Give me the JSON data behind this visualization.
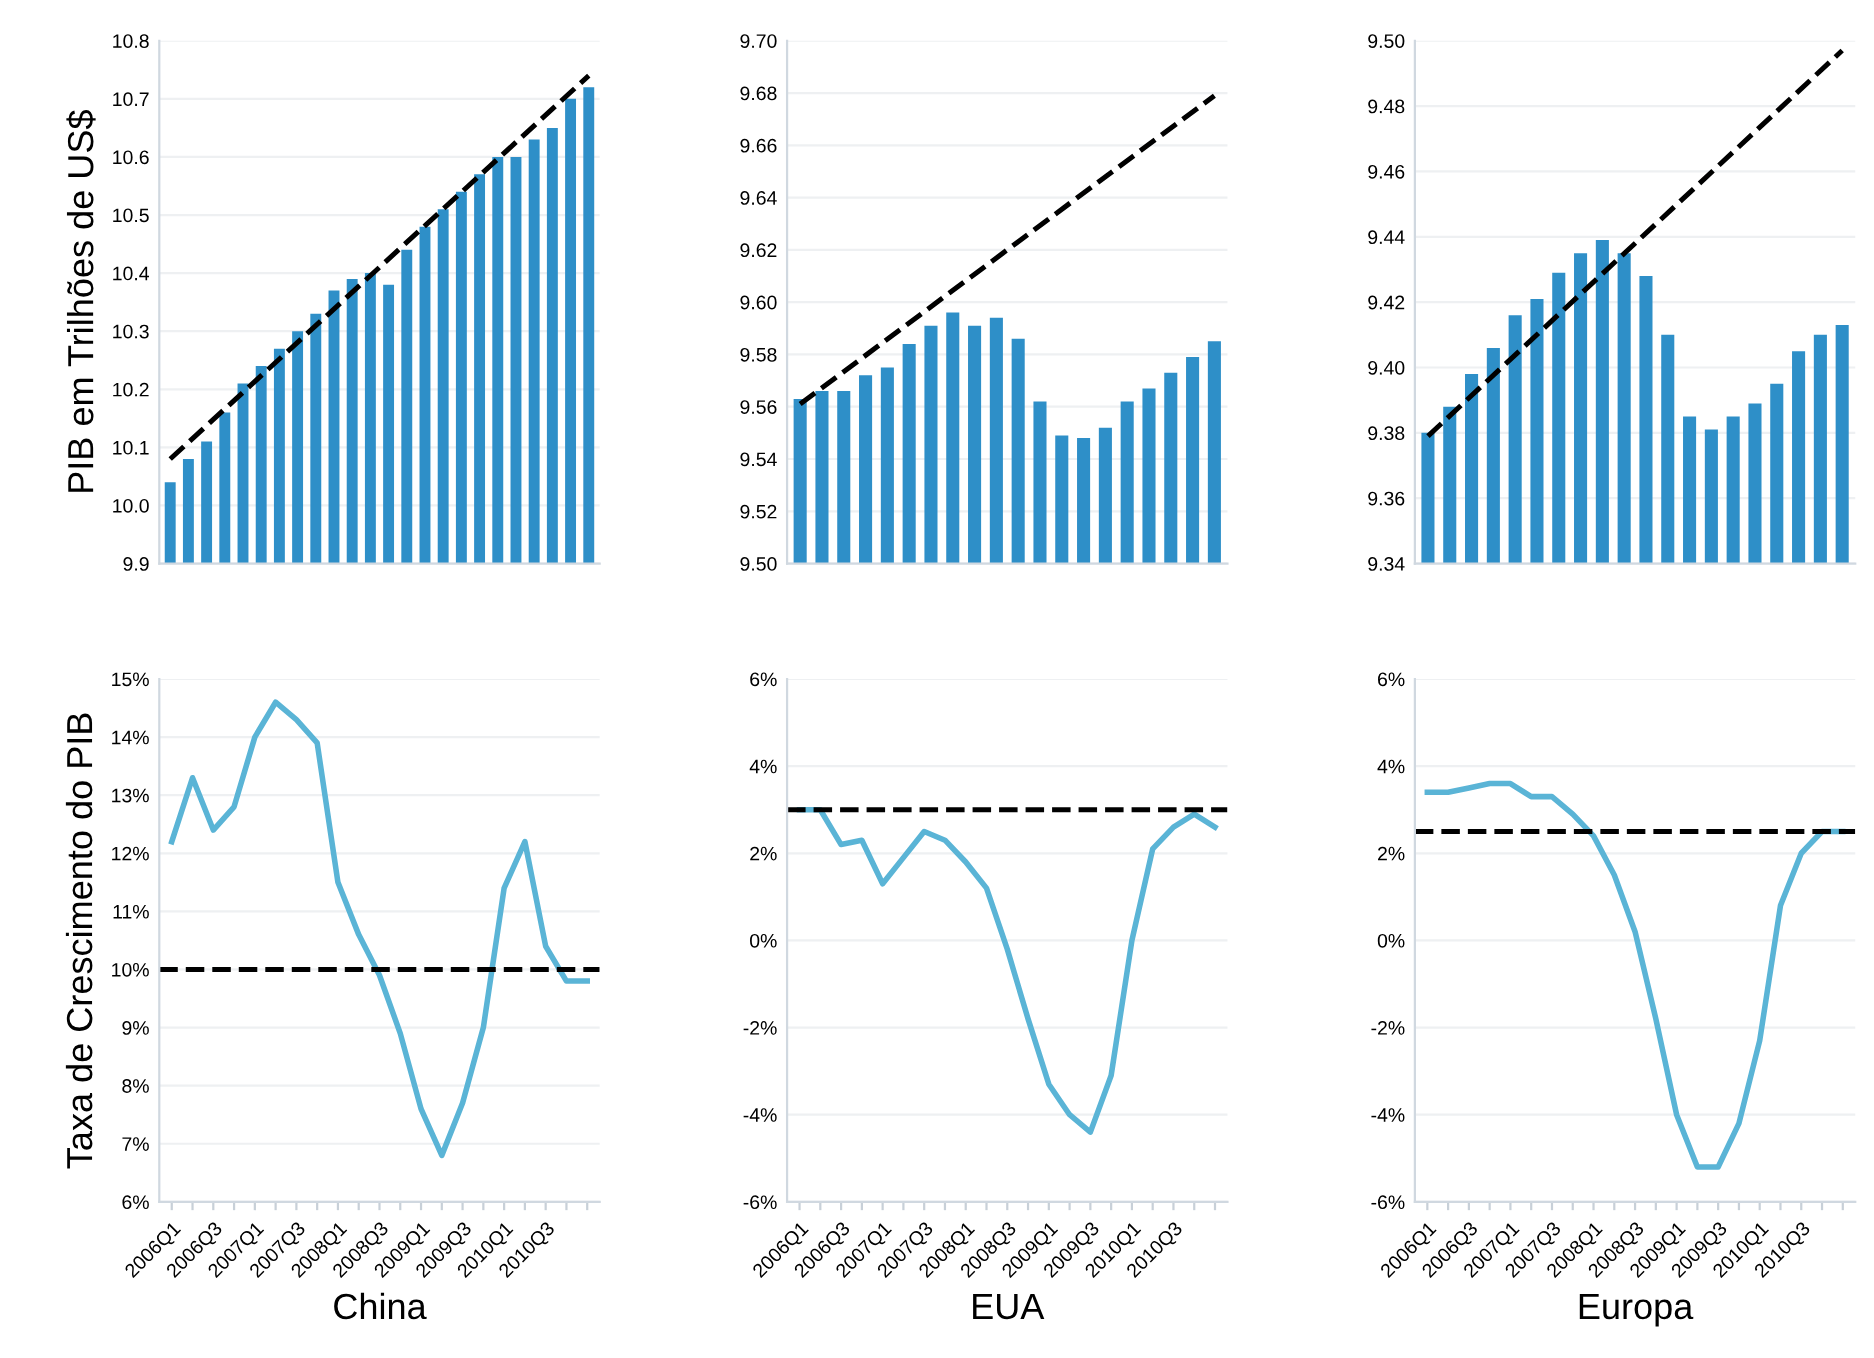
{
  "chart_data": [
    {
      "type": "bar",
      "ylabel": "PIB em Trilhões de US$",
      "categories": [
        null,
        null,
        null,
        null,
        null,
        null,
        null,
        null,
        null,
        null,
        null,
        null,
        null,
        null,
        null,
        null,
        null,
        null,
        null,
        null,
        null,
        null,
        null,
        null
      ],
      "tick_labels": "y",
      "grid": "y",
      "ylim": [
        9.9,
        10.8
      ],
      "yticks": [
        {
          "value": 9.9,
          "label": "9.9"
        },
        {
          "value": 10.0,
          "label": "10.0"
        },
        {
          "value": 10.1,
          "label": "10.1"
        },
        {
          "value": 10.2,
          "label": "10.2"
        },
        {
          "value": 10.3,
          "label": "10.3"
        },
        {
          "value": 10.4,
          "label": "10.4"
        },
        {
          "value": 10.5,
          "label": "10.5"
        },
        {
          "value": 10.6,
          "label": "10.6"
        },
        {
          "value": 10.7,
          "label": "10.7"
        },
        {
          "value": 10.8,
          "label": "10.8"
        }
      ],
      "series": [
        {
          "type": "bar",
          "color": "#2e8fc8",
          "values": [
            10.04,
            10.08,
            10.11,
            10.16,
            10.21,
            10.24,
            10.27,
            10.3,
            10.33,
            10.37,
            10.39,
            10.4,
            10.38,
            10.44,
            10.48,
            10.51,
            10.54,
            10.57,
            10.6,
            10.6,
            10.63,
            10.65,
            10.7,
            10.72
          ]
        },
        {
          "type": "line",
          "color": "#000000",
          "line_style": "dashed",
          "values": [
            10.08,
            null,
            null,
            null,
            null,
            null,
            null,
            null,
            null,
            null,
            null,
            null,
            null,
            null,
            null,
            null,
            null,
            null,
            null,
            null,
            null,
            null,
            null,
            10.74
          ]
        }
      ]
    },
    {
      "type": "bar",
      "categories": [
        null,
        null,
        null,
        null,
        null,
        null,
        null,
        null,
        null,
        null,
        null,
        null,
        null,
        null,
        null,
        null,
        null,
        null,
        null,
        null
      ],
      "tick_labels": "y",
      "grid": "y",
      "ylim": [
        9.5,
        9.7
      ],
      "yticks": [
        {
          "value": 9.5,
          "label": "9.50"
        },
        {
          "value": 9.52,
          "label": "9.52"
        },
        {
          "value": 9.54,
          "label": "9.54"
        },
        {
          "value": 9.56,
          "label": "9.56"
        },
        {
          "value": 9.58,
          "label": "9.58"
        },
        {
          "value": 9.6,
          "label": "9.60"
        },
        {
          "value": 9.62,
          "label": "9.62"
        },
        {
          "value": 9.64,
          "label": "9.64"
        },
        {
          "value": 9.66,
          "label": "9.66"
        },
        {
          "value": 9.68,
          "label": "9.68"
        },
        {
          "value": 9.7,
          "label": "9.70"
        }
      ],
      "series": [
        {
          "type": "bar",
          "color": "#2e8fc8",
          "values": [
            9.563,
            9.566,
            9.566,
            9.572,
            9.575,
            9.584,
            9.591,
            9.596,
            9.591,
            9.594,
            9.586,
            9.562,
            9.549,
            9.548,
            9.552,
            9.562,
            9.567,
            9.573,
            9.579,
            9.585
          ]
        },
        {
          "type": "line",
          "color": "#000000",
          "line_style": "dashed",
          "values": [
            9.561,
            null,
            null,
            null,
            null,
            null,
            null,
            null,
            null,
            null,
            null,
            null,
            null,
            null,
            null,
            null,
            null,
            null,
            null,
            9.679
          ]
        }
      ]
    },
    {
      "type": "bar",
      "categories": [
        null,
        null,
        null,
        null,
        null,
        null,
        null,
        null,
        null,
        null,
        null,
        null,
        null,
        null,
        null,
        null,
        null,
        null,
        null,
        null
      ],
      "tick_labels": "y",
      "grid": "y",
      "ylim": [
        9.34,
        9.5
      ],
      "yticks": [
        {
          "value": 9.34,
          "label": "9.34"
        },
        {
          "value": 9.36,
          "label": "9.36"
        },
        {
          "value": 9.38,
          "label": "9.38"
        },
        {
          "value": 9.4,
          "label": "9.40"
        },
        {
          "value": 9.42,
          "label": "9.42"
        },
        {
          "value": 9.44,
          "label": "9.44"
        },
        {
          "value": 9.46,
          "label": "9.46"
        },
        {
          "value": 9.48,
          "label": "9.48"
        },
        {
          "value": 9.5,
          "label": "9.50"
        }
      ],
      "series": [
        {
          "type": "bar",
          "color": "#2e8fc8",
          "values": [
            9.38,
            9.388,
            9.398,
            9.406,
            9.416,
            9.421,
            9.429,
            9.435,
            9.439,
            9.435,
            9.428,
            9.41,
            9.385,
            9.381,
            9.385,
            9.389,
            9.395,
            9.405,
            9.41,
            9.413
          ]
        },
        {
          "type": "line",
          "color": "#000000",
          "line_style": "dashed",
          "values": [
            9.379,
            null,
            null,
            null,
            null,
            null,
            null,
            null,
            null,
            null,
            null,
            null,
            null,
            null,
            null,
            null,
            null,
            null,
            null,
            9.497
          ]
        }
      ]
    },
    {
      "type": "line",
      "ylabel": "Taxa de Crescimento do PIB",
      "xlabel": "China",
      "grid": "y",
      "categories": [
        "2006Q1",
        null,
        "2006Q3",
        null,
        "2007Q1",
        null,
        "2007Q3",
        null,
        "2008Q1",
        null,
        "2008Q3",
        null,
        "2009Q1",
        null,
        "2009Q3",
        null,
        "2010Q1",
        null,
        "2010Q3",
        null,
        null
      ],
      "ylim": [
        6,
        15
      ],
      "yticks": [
        {
          "value": 6,
          "label": "6%"
        },
        {
          "value": 7,
          "label": "7%"
        },
        {
          "value": 8,
          "label": "8%"
        },
        {
          "value": 9,
          "label": "9%"
        },
        {
          "value": 10,
          "label": "10%"
        },
        {
          "value": 11,
          "label": "11%"
        },
        {
          "value": 12,
          "label": "12%"
        },
        {
          "value": 13,
          "label": "13%"
        },
        {
          "value": 14,
          "label": "14%"
        },
        {
          "value": 15,
          "label": "15%"
        }
      ],
      "series": [
        {
          "color": "#5ab4d6",
          "values": [
            12.2,
            13.3,
            12.4,
            12.8,
            14.0,
            14.6,
            14.3,
            13.9,
            11.5,
            10.6,
            9.9,
            8.9,
            7.6,
            6.8,
            7.7,
            9.0,
            11.4,
            12.2,
            10.4,
            9.8,
            9.8
          ]
        }
      ],
      "ref_lines": [
        {
          "axis": "y",
          "value": 10,
          "color": "#000000",
          "line_style": "dashed"
        }
      ]
    },
    {
      "type": "line",
      "xlabel": "EUA",
      "grid": "y",
      "categories": [
        "2006Q1",
        null,
        "2006Q3",
        null,
        "2007Q1",
        null,
        "2007Q3",
        null,
        "2008Q1",
        null,
        "2008Q3",
        null,
        "2009Q1",
        null,
        "2009Q3",
        null,
        "2010Q1",
        null,
        "2010Q3",
        null,
        null
      ],
      "ylim": [
        -6,
        6
      ],
      "yticks": [
        {
          "value": -6,
          "label": "-6%"
        },
        {
          "value": -4,
          "label": "-4%"
        },
        {
          "value": -2,
          "label": "-2%"
        },
        {
          "value": 0,
          "label": "0%"
        },
        {
          "value": 2,
          "label": "2%"
        },
        {
          "value": 4,
          "label": "4%"
        },
        {
          "value": 6,
          "label": "6%"
        }
      ],
      "series": [
        {
          "color": "#5ab4d6",
          "values": [
            3.0,
            3.0,
            2.2,
            2.3,
            1.3,
            1.9,
            2.5,
            2.3,
            1.8,
            1.2,
            -0.2,
            -1.8,
            -3.3,
            -4.0,
            -4.4,
            -3.1,
            0.0,
            2.1,
            2.6,
            2.9,
            2.6
          ]
        }
      ],
      "ref_lines": [
        {
          "axis": "y",
          "value": 3,
          "color": "#000000",
          "line_style": "dashed"
        }
      ]
    },
    {
      "type": "line",
      "xlabel": "Europa",
      "grid": "y",
      "categories": [
        "2006Q1",
        null,
        "2006Q3",
        null,
        "2007Q1",
        null,
        "2007Q3",
        null,
        "2008Q1",
        null,
        "2008Q3",
        null,
        "2009Q1",
        null,
        "2009Q3",
        null,
        "2010Q1",
        null,
        "2010Q3",
        null,
        null
      ],
      "ylim": [
        -6,
        6
      ],
      "yticks": [
        {
          "value": -6,
          "label": "-6%"
        },
        {
          "value": -4,
          "label": "-4%"
        },
        {
          "value": -2,
          "label": "-2%"
        },
        {
          "value": 0,
          "label": "0%"
        },
        {
          "value": 2,
          "label": "2%"
        },
        {
          "value": 4,
          "label": "4%"
        },
        {
          "value": 6,
          "label": "6%"
        }
      ],
      "series": [
        {
          "color": "#5ab4d6",
          "values": [
            3.4,
            3.4,
            3.5,
            3.6,
            3.6,
            3.3,
            3.3,
            2.9,
            2.4,
            1.5,
            0.2,
            -1.8,
            -4.0,
            -5.2,
            -5.2,
            -4.2,
            -2.3,
            0.8,
            2.0,
            2.5,
            2.5
          ]
        }
      ],
      "ref_lines": [
        {
          "axis": "y",
          "value": 2.5,
          "color": "#000000",
          "line_style": "dashed"
        }
      ]
    }
  ]
}
